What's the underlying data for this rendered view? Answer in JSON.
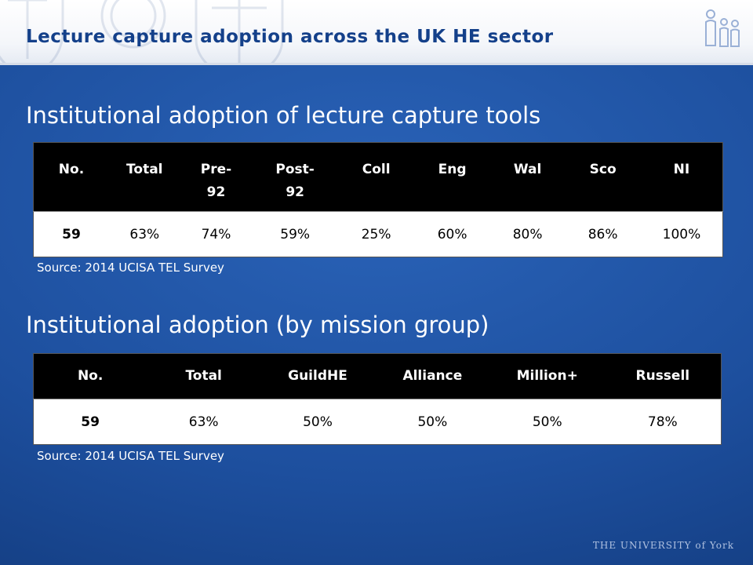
{
  "slide": {
    "title": "Lecture capture adoption across the UK HE sector",
    "logo_text": "THE UNIVERSITY of York"
  },
  "section1": {
    "heading": "Institutional adoption of lecture capture tools",
    "headers": [
      "No.",
      "Total",
      "Pre-92",
      "Post-92",
      "Coll",
      "Eng",
      "Wal",
      "Sco",
      "NI"
    ],
    "values": [
      "59",
      "63%",
      "74%",
      "59%",
      "25%",
      "60%",
      "80%",
      "86%",
      "100%"
    ],
    "source": "Source: 2014 UCISA TEL Survey"
  },
  "section2": {
    "heading": "Institutional adoption (by mission group)",
    "headers": [
      "No.",
      "Total",
      "GuildHE",
      "Alliance",
      "Million+",
      "Russell"
    ],
    "values": [
      "59",
      "63%",
      "50%",
      "50%",
      "50%",
      "78%"
    ],
    "source": "Source: 2014 UCISA TEL Survey"
  },
  "colors": {
    "title": "#14408a",
    "background": "#1d4f9e",
    "table_header": "#000000"
  }
}
